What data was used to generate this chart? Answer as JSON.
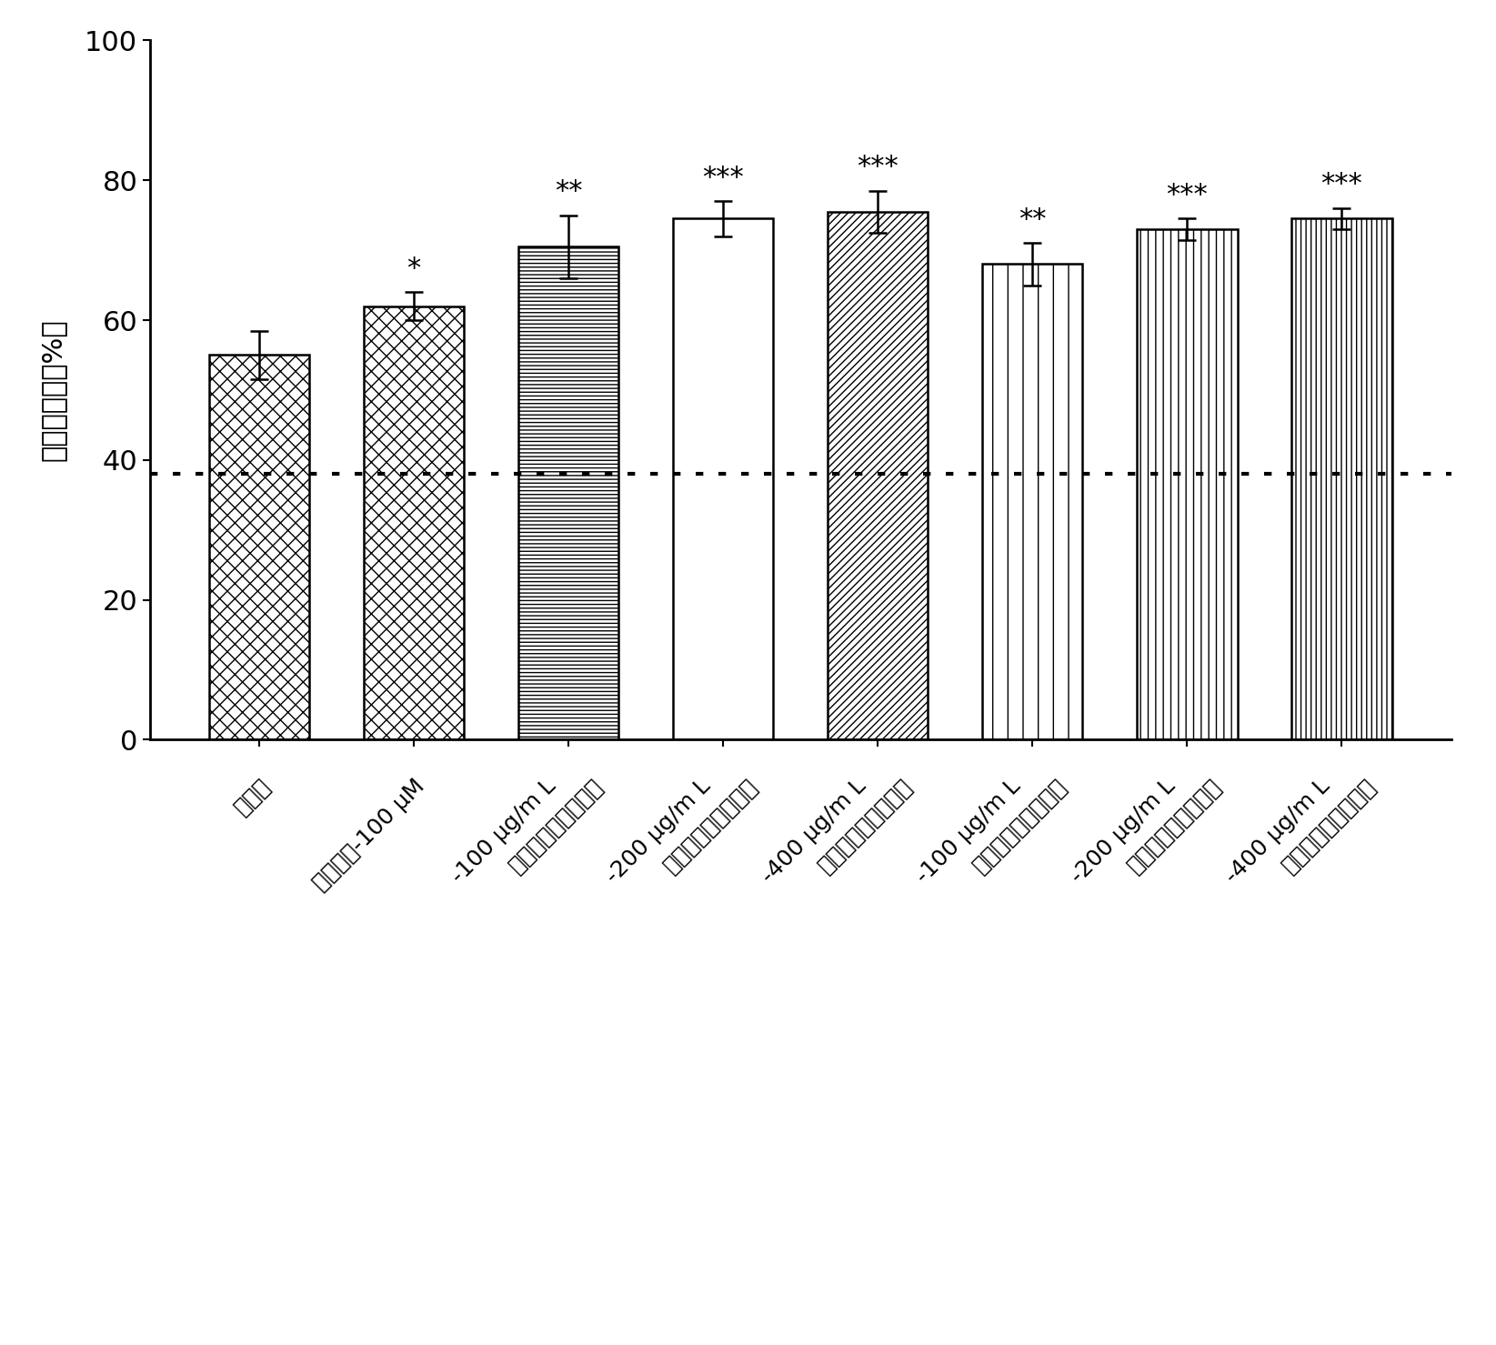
{
  "values": [
    55.0,
    62.0,
    70.5,
    74.5,
    75.5,
    68.0,
    73.0,
    74.5
  ],
  "errors": [
    3.5,
    2.0,
    4.5,
    2.5,
    3.0,
    3.0,
    1.5,
    1.5
  ],
  "significance": [
    "",
    "*",
    "**",
    "***",
    "***",
    "**",
    "***",
    "***"
  ],
  "reference_line": 38.0,
  "ylabel": "细胞存活率（%）",
  "ylim": [
    0,
    100
  ],
  "yticks": [
    0,
    20,
    40,
    60,
    80,
    100
  ],
  "ytick_labels": [
    "0",
    "20",
    "40",
    "60",
    "80",
    "100"
  ],
  "bar_width": 0.65,
  "font_size": 22,
  "sig_font_size": 22,
  "xlabel_fontsize": 18,
  "hatch_patterns": [
    "xx",
    "XX",
    "----",
    "====",
    "////",
    "|",
    "||",
    "|||"
  ],
  "xlabels_line1": [
    "模型组",
    "尼可地尔-100μM",
    "有效部位（批次一）-100μg/mL",
    "有效部位（批次一）-200μg/mL",
    "有效部位（批次一）-400μg/mL",
    "有效部位（批次二）-100μg/mL",
    "有效部位（批次二）-200μg/mL",
    "有效部位（批次二）-400μg/mL"
  ]
}
